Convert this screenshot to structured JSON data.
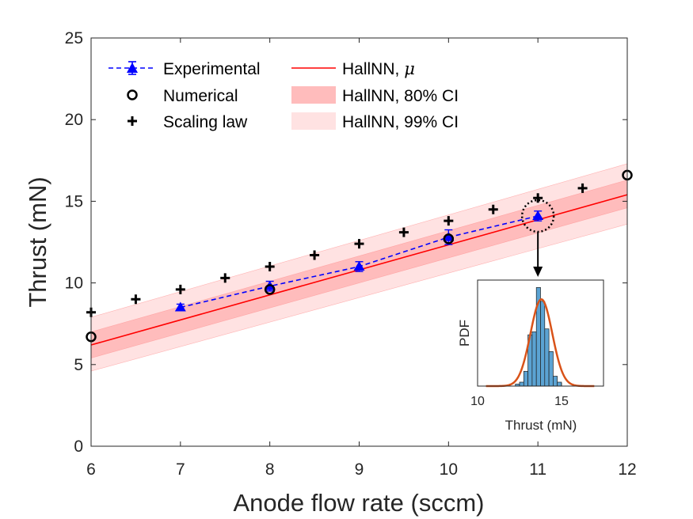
{
  "chart_data": {
    "type": "line",
    "xlabel": "Anode flow rate (sccm)",
    "ylabel": "Thrust (mN)",
    "xlim": [
      6,
      12
    ],
    "ylim": [
      0,
      25
    ],
    "xticks": [
      6,
      7,
      8,
      9,
      10,
      11,
      12
    ],
    "yticks": [
      0,
      5,
      10,
      15,
      20,
      25
    ],
    "grid": false,
    "legend_position": "top-left",
    "legend": {
      "experimental": "Experimental",
      "numerical": "Numerical",
      "scaling": "Scaling law",
      "mu_prefix": "HallNN, ",
      "mu_symbol": "μ",
      "ci80": "HallNN, 80% CI",
      "ci99": "HallNN, 99% CI"
    },
    "series": {
      "experimental": {
        "x": [
          7,
          8,
          9,
          10,
          11
        ],
        "y": [
          8.5,
          9.8,
          11.0,
          12.8,
          14.1
        ],
        "err": [
          0.2,
          0.3,
          0.3,
          0.45,
          0.3
        ],
        "color": "#0000ff"
      },
      "numerical": {
        "x": [
          6,
          8,
          10,
          12
        ],
        "y": [
          6.7,
          9.6,
          12.7,
          16.6
        ],
        "color": "#000000"
      },
      "scaling": {
        "x": [
          6,
          6.5,
          7,
          7.5,
          8,
          8.5,
          9,
          9.5,
          10,
          10.5,
          11,
          11.5
        ],
        "y": [
          8.2,
          9.0,
          9.6,
          10.3,
          11.0,
          11.7,
          12.4,
          13.1,
          13.8,
          14.5,
          15.2,
          15.8
        ],
        "color": "#000000"
      },
      "hallnn_mu": {
        "x": [
          6,
          12
        ],
        "y": [
          6.2,
          15.4
        ],
        "color": "#ff0000"
      },
      "hallnn_ci80": {
        "x": [
          6,
          12
        ],
        "lower": [
          5.4,
          14.6
        ],
        "upper": [
          7.0,
          16.3
        ],
        "color": "#ff9999"
      },
      "hallnn_ci99": {
        "x": [
          6,
          12
        ],
        "lower": [
          4.6,
          13.6
        ],
        "upper": [
          7.9,
          17.3
        ],
        "color": "#ffd5d5"
      }
    },
    "callout": {
      "x": 11,
      "y": 14.1
    },
    "inset": {
      "type": "bar",
      "xlabel": "Thrust (mN)",
      "ylabel": "PDF",
      "xlim": [
        10,
        17.5
      ],
      "xticks": [
        10,
        15
      ],
      "bar_color": "#5ba3d3",
      "bin_edges": [
        12.25,
        12.5,
        12.75,
        13.0,
        13.25,
        13.5,
        13.75,
        14.0,
        14.25,
        14.5,
        14.75,
        15.0
      ],
      "bin_heights": [
        0.02,
        0.04,
        0.15,
        0.52,
        0.55,
        1.0,
        0.86,
        0.58,
        0.35,
        0.1,
        0.04
      ],
      "fit_color": "#d95319",
      "fit_mean": 13.8,
      "fit_sd": 0.65,
      "fit_peak": 0.88
    }
  }
}
